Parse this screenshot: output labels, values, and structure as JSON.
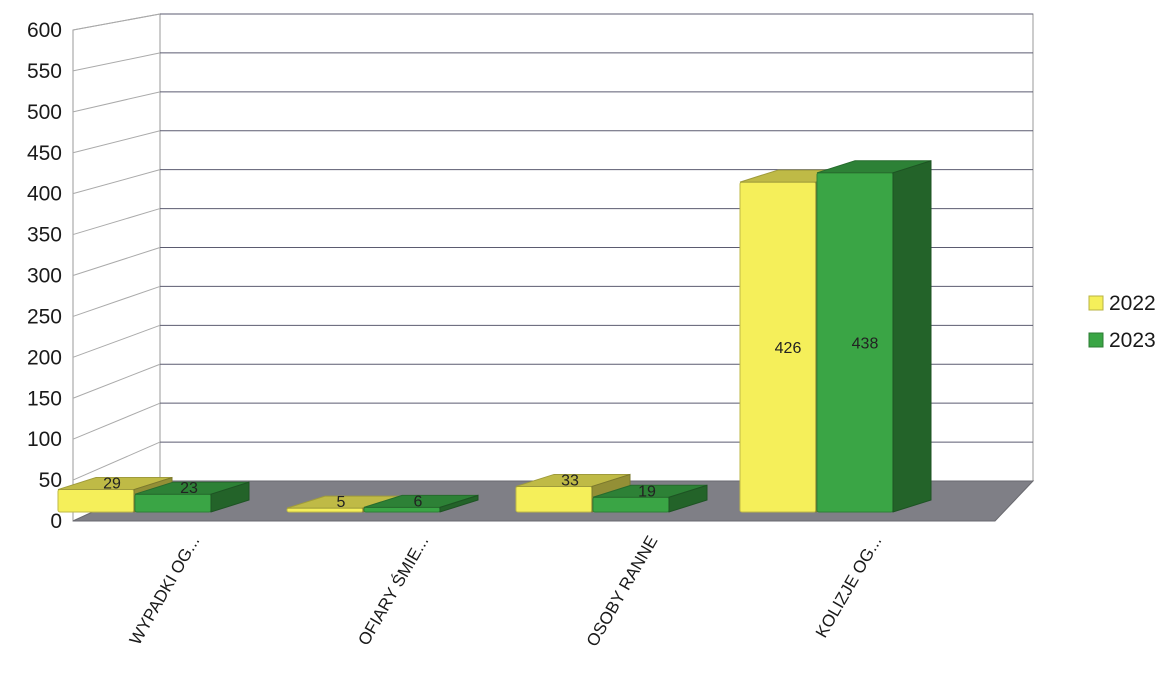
{
  "chart_data": {
    "type": "bar",
    "categories": [
      "WYPADKI OG...",
      "OFIARY ŚMIE...",
      "OSOBY RANNE",
      "KOLIZJE OG..."
    ],
    "series": [
      {
        "name": "2022",
        "values": [
          29,
          5,
          33,
          426
        ],
        "color": "#f5ef5a"
      },
      {
        "name": "2023",
        "values": [
          23,
          6,
          19,
          438
        ],
        "color": "#3aa545"
      }
    ],
    "ylim": [
      0,
      600
    ],
    "yticks": [
      0,
      50,
      100,
      150,
      200,
      250,
      300,
      350,
      400,
      450,
      500,
      550,
      600
    ],
    "grid": true,
    "legend_position": "right",
    "three_d": true
  }
}
